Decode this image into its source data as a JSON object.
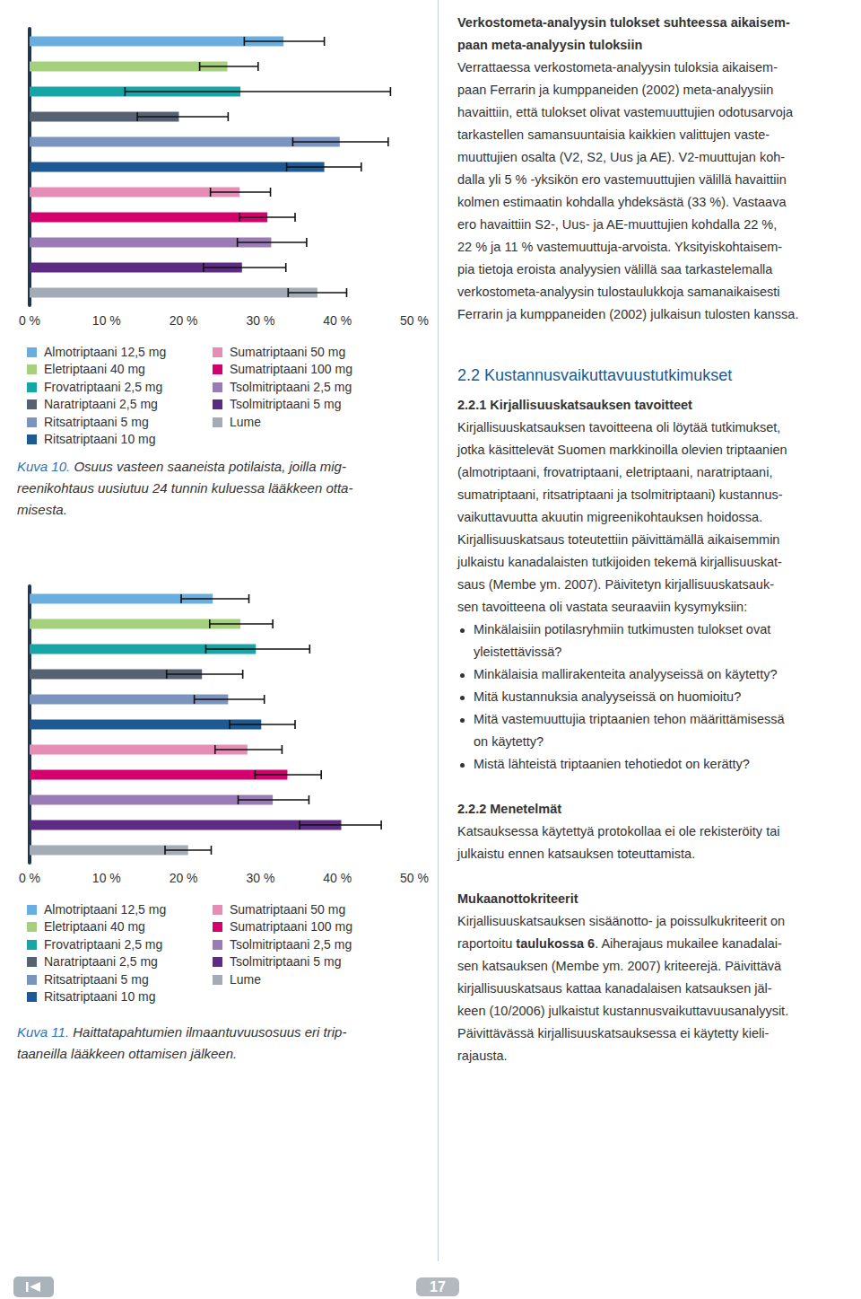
{
  "chart_data": [
    {
      "type": "bar",
      "orientation": "horizontal",
      "categories": [
        "Almotriptaani 12,5 mg",
        "Eletriptaani 40 mg",
        "Frovatriptaani 2,5 mg",
        "Naratriptaani 2,5 mg",
        "Ritsatriptaani 5 mg",
        "Ritsatriptaani 10 mg",
        "Sumatriptaani 50 mg",
        "Sumatriptaani 100 mg",
        "Tsolmitriptaani 2,5 mg",
        "Tsolmitriptaani 5 mg",
        "Lume"
      ],
      "values": [
        33.0,
        25.7,
        27.4,
        19.4,
        40.3,
        38.3,
        27.3,
        30.9,
        31.4,
        27.6,
        37.4
      ],
      "error_bars": [
        [
          27.9,
          38.3
        ],
        [
          22.1,
          29.7
        ],
        [
          12.4,
          46.9
        ],
        [
          14.0,
          25.8
        ],
        [
          34.2,
          46.6
        ],
        [
          33.4,
          43.1
        ],
        [
          23.5,
          31.3
        ],
        [
          27.3,
          34.5
        ],
        [
          27.0,
          36.0
        ],
        [
          22.6,
          33.3
        ],
        [
          33.6,
          41.2
        ]
      ],
      "colors": [
        "#6aaee0",
        "#a5d07c",
        "#17a5a5",
        "#566272",
        "#7b93bf",
        "#1d5a94",
        "#e58db4",
        "#d4006e",
        "#9a7bb5",
        "#5d2b84",
        "#a3acb4"
      ],
      "xlim": [
        0,
        50
      ],
      "xticks": [
        {
          "value": 0,
          "label": "0 %"
        },
        {
          "value": 10,
          "label": "10 %"
        },
        {
          "value": 20,
          "label": "20 %"
        },
        {
          "value": 30,
          "label": "30 %"
        },
        {
          "value": 40,
          "label": "40 %"
        },
        {
          "value": 50,
          "label": "50 %"
        }
      ],
      "tick_labels": "x",
      "grid": false,
      "legend": "bottom",
      "caption_label": "Kuva 10.",
      "caption_lines": [
        "Osuus vasteen saaneista potilaista, joilla mig-",
        "reenikohtaus uusiutuu 24 tunnin kuluessa lääkkeen otta-",
        "misesta."
      ]
    },
    {
      "type": "bar",
      "orientation": "horizontal",
      "categories": [
        "Almotriptaani 12,5 mg",
        "Eletriptaani 40 mg",
        "Frovatriptaani 2,5 mg",
        "Naratriptaani 2,5 mg",
        "Ritsatriptaani 5 mg",
        "Ritsatriptaani 10 mg",
        "Sumatriptaani 50 mg",
        "Sumatriptaani 100 mg",
        "Tsolmitriptaani 2,5 mg",
        "Tsolmitriptaani 5 mg",
        "Lume"
      ],
      "values": [
        23.8,
        27.4,
        29.4,
        22.4,
        25.8,
        30.1,
        28.3,
        33.5,
        31.6,
        40.5,
        20.6
      ],
      "error_bars": [
        [
          19.7,
          28.5
        ],
        [
          23.4,
          31.6
        ],
        [
          22.9,
          36.4
        ],
        [
          17.8,
          27.7
        ],
        [
          21.4,
          30.5
        ],
        [
          26.0,
          34.5
        ],
        [
          24.1,
          32.8
        ],
        [
          29.3,
          37.9
        ],
        [
          27.1,
          36.3
        ],
        [
          35.1,
          45.7
        ],
        [
          17.6,
          23.6
        ]
      ],
      "colors": [
        "#6aaee0",
        "#a5d07c",
        "#17a5a5",
        "#566272",
        "#7b93bf",
        "#1d5a94",
        "#e58db4",
        "#d4006e",
        "#9a7bb5",
        "#5d2b84",
        "#a3acb4"
      ],
      "xlim": [
        0,
        50
      ],
      "xticks": [
        {
          "value": 0,
          "label": "0 %"
        },
        {
          "value": 10,
          "label": "10 %"
        },
        {
          "value": 20,
          "label": "20 %"
        },
        {
          "value": 30,
          "label": "30 %"
        },
        {
          "value": 40,
          "label": "40 %"
        },
        {
          "value": 50,
          "label": "50 %"
        }
      ],
      "tick_labels": "x",
      "grid": false,
      "legend": "bottom",
      "caption_label": "Kuva 11.",
      "caption_lines": [
        "Haittatapahtumien ilmaantuvuusosuus eri trip-",
        "taaneilla lääkkeen ottamisen jälkeen."
      ]
    }
  ],
  "page": {
    "right_column": [
      {
        "style": "heading",
        "lines": [
          "Verkostometa-analyysin tulokset suhteessa aikaisem-",
          "paan meta-analyysin tuloksiin"
        ]
      },
      {
        "style": "body",
        "lines": [
          "Verrattaessa verkostometa-analyysin tuloksia aikaisem-",
          "paan Ferrarin ja kumppaneiden (2002) meta-analyysiin",
          "havaittiin, että tulokset olivat vastemuuttujien odotusarvoja",
          "tarkastellen samansuuntaisia kaikkien valittujen vaste-",
          "muuttujien osalta (V2, S2, Uus ja AE). V2-muuttujan koh-",
          "dalla yli 5 % -yksikön ero vastemuuttujien välillä havaittiin",
          "kolmen estimaatin kohdalla yhdeksästä (33 %). Vastaava",
          "ero havaittiin S2-, Uus- ja AE-muuttujien kohdalla 22 %,",
          "22 % ja 11 % vastemuuttuja-arvoista. Yksityiskohtaisem-",
          "pia tietoja eroista analyysien välillä saa tarkastelemalla",
          "verkostometa-analyysin tulostaulukkoja samanaikaisesti",
          "Ferrarin ja kumppaneiden (2002) julkaisun tulosten kanssa."
        ]
      },
      {
        "style": "section",
        "lines": [
          "2.2 Kustannusvaikuttavuustutkimukset"
        ]
      },
      {
        "style": "subheading",
        "lines": [
          "2.2.1 Kirjallisuuskatsauksen tavoitteet"
        ]
      },
      {
        "style": "body",
        "lines": [
          "Kirjallisuuskatsauksen tavoitteena oli löytää tutkimukset,",
          "jotka käsittelevät Suomen markkinoilla olevien triptaanien",
          "(almotriptaani, frovatriptaani, eletriptaani, naratriptaani,",
          "sumatriptaani, ritsatriptaani ja tsolmitriptaani) kustannus-",
          "vaikuttavuutta akuutin migreenikohtauksen hoidossa.",
          "Kirjallisuuskatsaus toteutettiin päivittämällä aikaisemmin",
          "julkaistu kanadalaisten tutkijoiden tekemä kirjallisuuskat-",
          "saus (Membe ym. 2007). Päivitetyn kirjallisuuskatsauk-",
          "sen tavoitteena oli vastata seuraaviin kysymyksiin:"
        ]
      },
      {
        "style": "bullet",
        "lines": [
          "Minkälaisiin potilasryhmiin tutkimusten tulokset ovat",
          "yleistettävissä?"
        ]
      },
      {
        "style": "bullet",
        "lines": [
          "Minkälaisia mallirakenteita analyyseissä on käytetty?"
        ]
      },
      {
        "style": "bullet",
        "lines": [
          "Mitä kustannuksia analyyseissä on huomioitu?"
        ]
      },
      {
        "style": "bullet",
        "lines": [
          "Mitä vastemuuttujia triptaanien tehon määrittämisessä",
          "on käytetty?"
        ]
      },
      {
        "style": "bullet",
        "lines": [
          "Mistä lähteistä triptaanien tehotiedot on kerätty?"
        ]
      },
      {
        "style": "subheading",
        "lines": [
          "2.2.2 Menetelmät"
        ]
      },
      {
        "style": "body",
        "lines": [
          "Katsauksessa käytettyä protokollaa ei ole rekisteröity tai",
          "julkaistu ennen katsauksen toteuttamista."
        ]
      },
      {
        "style": "subheading",
        "lines": [
          "Mukaanottokriteerit"
        ]
      },
      {
        "style": "body",
        "lines": [
          "Kirjallisuuskatsauksen sisäänotto- ja poissulkukriteerit on",
          [
            {
              "text": "raportoitu "
            },
            {
              "text": "taulukossa 6",
              "bold": true
            },
            {
              "text": ". Aiherajaus mukailee kanadalai-"
            }
          ],
          "sen katsauksen (Membe ym. 2007) kriteerejä. Päivittävä",
          "kirjallisuuskatsaus kattaa kanadalaisen katsauksen jäl-",
          "keen (10/2006) julkaistut kustannusvaikuttavuusanalyysit.",
          "Päivittävässä kirjallisuuskatsauksessa ei käytetty kieli-",
          "rajausta."
        ]
      }
    ],
    "page_number": 17
  }
}
